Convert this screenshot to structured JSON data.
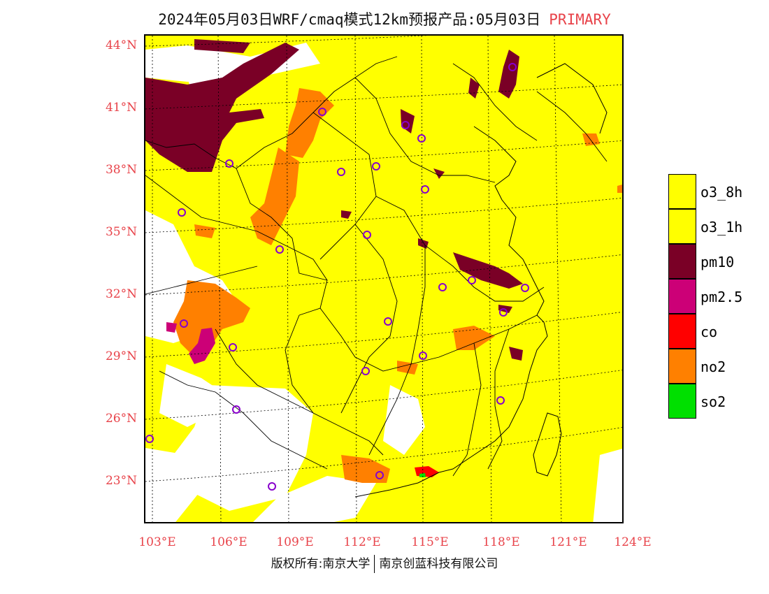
{
  "title": {
    "main": "2024年05月03日WRF/cmaq模式12km预报产品:05月03日",
    "badge": "PRIMARY"
  },
  "colors": {
    "o3_8h": "#ffff00",
    "o3_1h": "#ffff00",
    "pm10": "#7a0026",
    "pm25": "#cc0077",
    "co": "#ff0000",
    "no2": "#ff8000",
    "so2": "#00e000",
    "label": "#e8434a",
    "city": "#8800cc"
  },
  "lat_labels": [
    "44°N",
    "41°N",
    "38°N",
    "35°N",
    "32°N",
    "29°N",
    "26°N",
    "23°N"
  ],
  "lon_labels": [
    "103°E",
    "106°E",
    "109°E",
    "112°E",
    "115°E",
    "118°E",
    "121°E",
    "124°E"
  ],
  "legend": [
    {
      "label": "o3_8h",
      "color": "#ffff00"
    },
    {
      "label": "o3_1h",
      "color": "#ffff00"
    },
    {
      "label": "pm10",
      "color": "#7a0026"
    },
    {
      "label": "pm2.5",
      "color": "#cc0077"
    },
    {
      "label": "co",
      "color": "#ff0000"
    },
    {
      "label": "no2",
      "color": "#ff8000"
    },
    {
      "label": "so2",
      "color": "#00e000"
    }
  ],
  "copyright": {
    "left": "版权所有:南京大学",
    "right": "南京创蓝科技有限公司"
  }
}
